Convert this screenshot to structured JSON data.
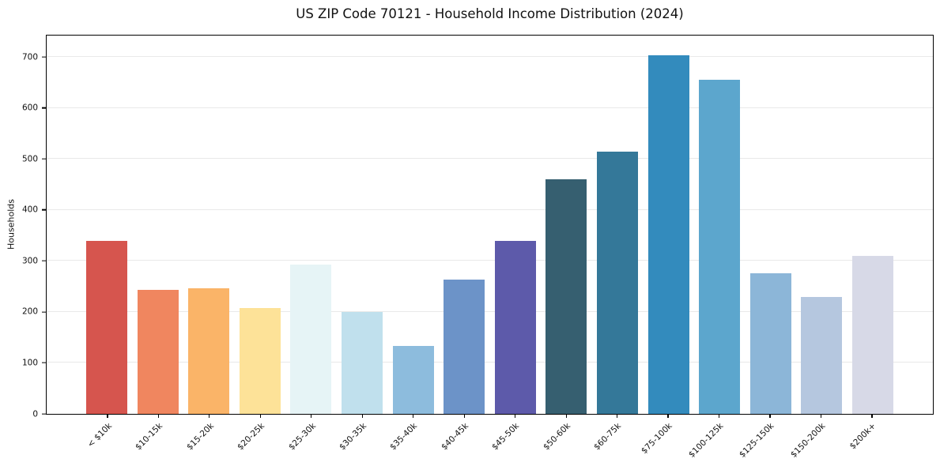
{
  "figure": {
    "background": "#ffffff",
    "spine_color": "#000000",
    "tick_color": "#000000",
    "text_color": "#111111"
  },
  "chart_data": {
    "type": "bar",
    "title": "US ZIP Code 70121 - Household Income Distribution (2024)",
    "xlabel": "",
    "ylabel": "Households",
    "categories": [
      "< $10k",
      "$10-15k",
      "$15-20k",
      "$20-25k",
      "$25-30k",
      "$30-35k",
      "$35-40k",
      "$40-45k",
      "$45-50k",
      "$50-60k",
      "$60-75k",
      "$75-100k",
      "$100-125k",
      "$125-150k",
      "$150-200k",
      "$200k+"
    ],
    "values": [
      340,
      244,
      247,
      207,
      293,
      200,
      133,
      264,
      340,
      460,
      515,
      703,
      655,
      276,
      230,
      310
    ],
    "bar_colors": [
      "#d6554e",
      "#f0865f",
      "#fab468",
      "#fde298",
      "#e6f4f6",
      "#c0e0ed",
      "#8dbcdd",
      "#6c93c8",
      "#5d5aaa",
      "#365f70",
      "#347899",
      "#338bbd",
      "#5ca6cd",
      "#8cb6d8",
      "#b5c7df",
      "#d7d9e7"
    ],
    "yticks": [
      0,
      100,
      200,
      300,
      400,
      500,
      600,
      700
    ],
    "ylim": [
      0,
      742
    ],
    "grid": true,
    "gridline_color": "#e9e9e9",
    "legend_position": "none"
  }
}
